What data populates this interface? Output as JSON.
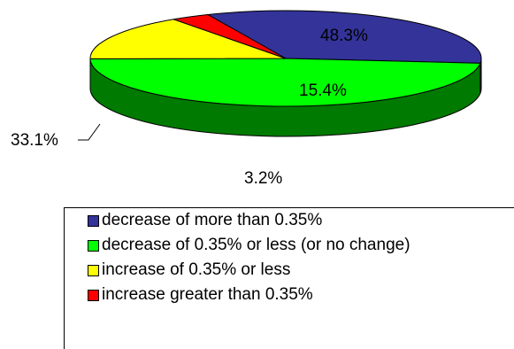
{
  "chart_data": {
    "type": "pie",
    "title": "",
    "slices": [
      {
        "label": "decrease of more than 0.35%",
        "value": 33.1,
        "value_label": "33.1%",
        "color": "#333399",
        "side_color": "#25256e"
      },
      {
        "label": "decrease of 0.35% or less (or no change)",
        "value": 48.3,
        "value_label": "48.3%",
        "color": "#00ff00",
        "side_color": "#007a00"
      },
      {
        "label": "increase of 0.35% or less",
        "value": 15.4,
        "value_label": "15.4%",
        "color": "#ffff00",
        "side_color": "#a7a700"
      },
      {
        "label": "increase greater than 0.35%",
        "value": 3.2,
        "value_label": "3.2%",
        "color": "#ff0000",
        "side_color": "#b00000"
      }
    ],
    "three_d": true,
    "legend_position": "bottom"
  }
}
